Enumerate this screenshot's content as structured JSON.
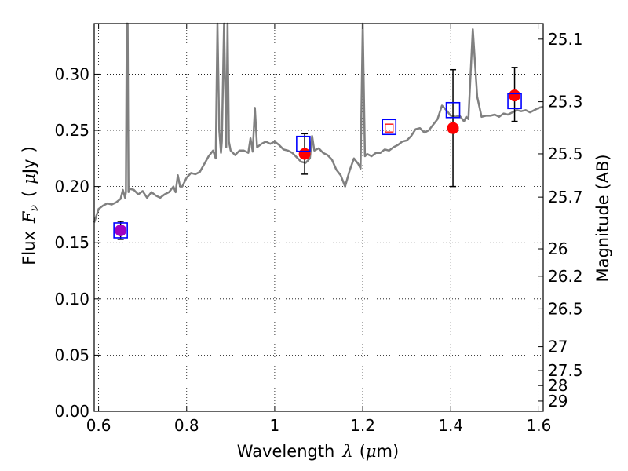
{
  "chart_data": {
    "type": "line",
    "xlabel_parts": [
      "Wavelength",
      "λ",
      "(",
      "μ",
      "m)"
    ],
    "ylabel_parts": [
      "Flux",
      "F",
      "ν",
      "(",
      "μ",
      "Jy",
      ")"
    ],
    "y2label": "Magnitude (AB)",
    "xlim": [
      0.59,
      1.61
    ],
    "ylim": [
      0.0,
      0.345
    ],
    "grid": true,
    "x_ticks": [
      {
        "v": 0.6,
        "label": "0.6"
      },
      {
        "v": 0.8,
        "label": "0.8"
      },
      {
        "v": 1.0,
        "label": "1"
      },
      {
        "v": 1.2,
        "label": "1.2"
      },
      {
        "v": 1.4,
        "label": "1.4"
      },
      {
        "v": 1.6,
        "label": "1.6"
      }
    ],
    "y_ticks": [
      {
        "v": 0.0,
        "label": "0.00"
      },
      {
        "v": 0.05,
        "label": "0.05"
      },
      {
        "v": 0.1,
        "label": "0.10"
      },
      {
        "v": 0.15,
        "label": "0.15"
      },
      {
        "v": 0.2,
        "label": "0.20"
      },
      {
        "v": 0.25,
        "label": "0.25"
      },
      {
        "v": 0.3,
        "label": "0.30"
      }
    ],
    "y2_ticks": [
      {
        "mag": 25.1,
        "label": "25.1"
      },
      {
        "mag": 25.3,
        "label": "25.3"
      },
      {
        "mag": 25.5,
        "label": "25.5"
      },
      {
        "mag": 25.7,
        "label": "25.7"
      },
      {
        "mag": 26.0,
        "label": "26"
      },
      {
        "mag": 26.2,
        "label": "26.2"
      },
      {
        "mag": 26.5,
        "label": "26.5"
      },
      {
        "mag": 27.0,
        "label": "27"
      },
      {
        "mag": 27.5,
        "label": "27.5"
      },
      {
        "mag": 28.0,
        "label": "28"
      },
      {
        "mag": 29.0,
        "label": "29"
      }
    ],
    "series": [
      {
        "kind": "spectrum",
        "color": "#808080",
        "x": [
          0.59,
          0.6,
          0.61,
          0.62,
          0.63,
          0.64,
          0.65,
          0.655,
          0.66,
          0.662,
          0.664,
          0.666,
          0.668,
          0.67,
          0.68,
          0.69,
          0.7,
          0.71,
          0.72,
          0.73,
          0.74,
          0.75,
          0.76,
          0.77,
          0.775,
          0.78,
          0.785,
          0.79,
          0.8,
          0.81,
          0.82,
          0.83,
          0.84,
          0.85,
          0.86,
          0.866,
          0.87,
          0.874,
          0.878,
          0.88,
          0.885,
          0.89,
          0.893,
          0.896,
          0.9,
          0.91,
          0.92,
          0.93,
          0.94,
          0.945,
          0.95,
          0.955,
          0.96,
          0.97,
          0.98,
          0.99,
          1.0,
          1.01,
          1.02,
          1.03,
          1.04,
          1.05,
          1.06,
          1.07,
          1.08,
          1.085,
          1.09,
          1.1,
          1.11,
          1.12,
          1.13,
          1.14,
          1.15,
          1.16,
          1.17,
          1.18,
          1.19,
          1.195,
          1.2,
          1.205,
          1.21,
          1.22,
          1.23,
          1.24,
          1.25,
          1.26,
          1.27,
          1.28,
          1.29,
          1.3,
          1.31,
          1.32,
          1.33,
          1.34,
          1.35,
          1.36,
          1.37,
          1.38,
          1.39,
          1.4,
          1.41,
          1.42,
          1.43,
          1.435,
          1.44,
          1.445,
          1.45,
          1.46,
          1.47,
          1.48,
          1.49,
          1.5,
          1.51,
          1.52,
          1.53,
          1.54,
          1.55,
          1.56,
          1.57,
          1.58,
          1.59,
          1.6,
          1.61
        ],
        "y": [
          0.168,
          0.18,
          0.183,
          0.185,
          0.184,
          0.186,
          0.189,
          0.197,
          0.19,
          0.195,
          0.345,
          0.345,
          0.195,
          0.198,
          0.197,
          0.193,
          0.196,
          0.19,
          0.195,
          0.192,
          0.19,
          0.193,
          0.195,
          0.2,
          0.195,
          0.21,
          0.2,
          0.2,
          0.208,
          0.212,
          0.211,
          0.213,
          0.22,
          0.227,
          0.232,
          0.225,
          0.345,
          0.25,
          0.23,
          0.24,
          0.345,
          0.235,
          0.345,
          0.24,
          0.232,
          0.228,
          0.232,
          0.232,
          0.23,
          0.243,
          0.231,
          0.27,
          0.235,
          0.238,
          0.24,
          0.238,
          0.24,
          0.237,
          0.233,
          0.232,
          0.23,
          0.226,
          0.222,
          0.221,
          0.225,
          0.245,
          0.232,
          0.234,
          0.23,
          0.228,
          0.224,
          0.215,
          0.21,
          0.2,
          0.214,
          0.225,
          0.22,
          0.216,
          0.345,
          0.227,
          0.229,
          0.227,
          0.23,
          0.23,
          0.233,
          0.232,
          0.235,
          0.237,
          0.24,
          0.241,
          0.245,
          0.251,
          0.252,
          0.248,
          0.25,
          0.255,
          0.26,
          0.272,
          0.268,
          0.263,
          0.262,
          0.263,
          0.258,
          0.262,
          0.26,
          0.3,
          0.34,
          0.28,
          0.262,
          0.263,
          0.263,
          0.264,
          0.262,
          0.265,
          0.264,
          0.266,
          0.268,
          0.267,
          0.268,
          0.266,
          0.268,
          0.27,
          0.271
        ]
      },
      {
        "kind": "model-photometry",
        "marker": "open-square",
        "color": "#0000ff",
        "x": [
          0.65,
          1.065,
          1.26,
          1.405,
          1.545
        ],
        "y": [
          0.161,
          0.238,
          0.253,
          0.268,
          0.276
        ]
      },
      {
        "kind": "observed-photometry",
        "marker": "filled-circle",
        "color": "#ff0000",
        "x": [
          0.65,
          1.068,
          1.26,
          1.405,
          1.545
        ],
        "y": [
          0.161,
          0.229,
          0.252,
          0.252,
          0.281
        ],
        "yerr_low": [
          0.008,
          0.018,
          0.0,
          0.052,
          0.023
        ],
        "yerr_high": [
          0.008,
          0.018,
          0.0,
          0.052,
          0.025
        ],
        "marker_colors": [
          "#a000c0",
          "#ff0000",
          "#ff0000",
          "#ff0000",
          "#ff0000"
        ],
        "marker_style": [
          "filled",
          "filled",
          "open-small-square",
          "filled",
          "filled"
        ]
      }
    ]
  }
}
